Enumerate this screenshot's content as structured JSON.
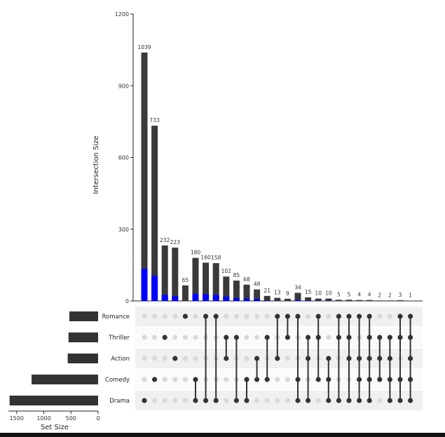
{
  "chart_data": {
    "type": "bar",
    "title": "",
    "ylabel": "Intersection Size",
    "set_size_label": "Set Size",
    "ylim": [
      0,
      1200
    ],
    "yticks": [
      0,
      300,
      600,
      900,
      1200
    ],
    "set_size_xlim": [
      0,
      1650
    ],
    "set_size_ticks": [
      1500,
      1000,
      500,
      0
    ],
    "sets": [
      "Romance",
      "Thriller",
      "Action",
      "Comedy",
      "Drama"
    ],
    "set_sizes": [
      530,
      545,
      560,
      1225,
      1630
    ],
    "intersections": [
      {
        "value": 1039,
        "highlight": 135,
        "members": [
          "Drama"
        ]
      },
      {
        "value": 733,
        "highlight": 105,
        "members": [
          "Comedy"
        ]
      },
      {
        "value": 232,
        "highlight": 25,
        "members": [
          "Thriller"
        ]
      },
      {
        "value": 223,
        "highlight": 20,
        "members": [
          "Action"
        ]
      },
      {
        "value": 65,
        "highlight": 0,
        "members": [
          "Romance"
        ]
      },
      {
        "value": 180,
        "highlight": 30,
        "members": [
          "Comedy",
          "Drama"
        ]
      },
      {
        "value": 160,
        "highlight": 28,
        "members": [
          "Romance",
          "Drama"
        ]
      },
      {
        "value": 158,
        "highlight": 25,
        "members": [
          "Romance",
          "Drama"
        ]
      },
      {
        "value": 102,
        "highlight": 18,
        "members": [
          "Thriller",
          "Action"
        ]
      },
      {
        "value": 85,
        "highlight": 12,
        "members": [
          "Thriller",
          "Drama"
        ]
      },
      {
        "value": 68,
        "highlight": 10,
        "members": [
          "Comedy",
          "Drama"
        ]
      },
      {
        "value": 48,
        "highlight": 8,
        "members": [
          "Action",
          "Comedy"
        ]
      },
      {
        "value": 21,
        "highlight": 2,
        "members": [
          "Thriller",
          "Comedy"
        ]
      },
      {
        "value": 13,
        "highlight": 1,
        "members": [
          "Romance",
          "Action"
        ]
      },
      {
        "value": 9,
        "highlight": 0,
        "members": [
          "Romance",
          "Thriller"
        ]
      },
      {
        "value": 34,
        "highlight": 4,
        "members": [
          "Romance",
          "Comedy",
          "Drama"
        ]
      },
      {
        "value": 15,
        "highlight": 2,
        "members": [
          "Thriller",
          "Action",
          "Drama"
        ]
      },
      {
        "value": 10,
        "highlight": 1,
        "members": [
          "Romance",
          "Thriller",
          "Comedy"
        ]
      },
      {
        "value": 10,
        "highlight": 1,
        "members": [
          "Action",
          "Comedy",
          "Drama"
        ]
      },
      {
        "value": 5,
        "highlight": 0,
        "members": [
          "Romance",
          "Thriller",
          "Drama"
        ]
      },
      {
        "value": 5,
        "highlight": 0,
        "members": [
          "Romance",
          "Thriller",
          "Action",
          "Drama"
        ]
      },
      {
        "value": 4,
        "highlight": 0,
        "members": [
          "Romance",
          "Action",
          "Comedy",
          "Drama"
        ]
      },
      {
        "value": 4,
        "highlight": 0,
        "members": [
          "Romance",
          "Thriller",
          "Action",
          "Comedy",
          "Drama"
        ]
      },
      {
        "value": 2,
        "highlight": 0,
        "members": [
          "Thriller",
          "Action",
          "Comedy"
        ]
      },
      {
        "value": 2,
        "highlight": 0,
        "members": [
          "Thriller",
          "Action",
          "Comedy",
          "Drama"
        ]
      },
      {
        "value": 3,
        "highlight": 0,
        "members": [
          "Romance",
          "Thriller",
          "Comedy",
          "Drama"
        ]
      },
      {
        "value": 1,
        "highlight": 0,
        "members": [
          "Romance",
          "Thriller",
          "Action",
          "Comedy",
          "Drama"
        ]
      }
    ],
    "colors": {
      "bar": "#3a3a3a",
      "highlight": "#0000ff",
      "dot_on": "#333333",
      "dot_off": "#d9d9d9",
      "stripe": "#f0f0f0",
      "set_bar": "#333333"
    }
  }
}
